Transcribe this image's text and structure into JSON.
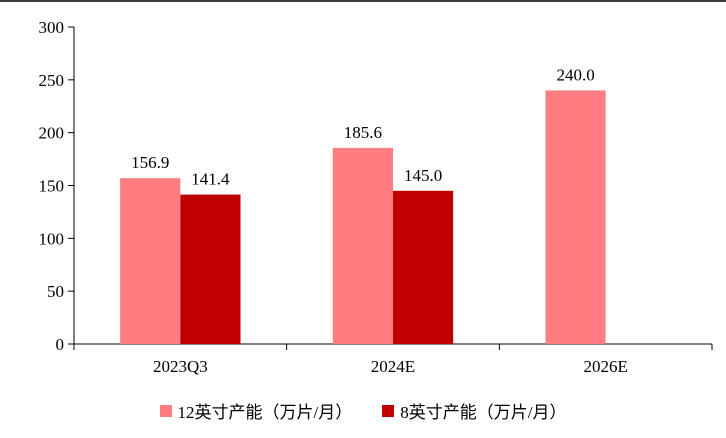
{
  "chart_data": {
    "type": "bar",
    "categories": [
      "2023Q3",
      "2024E",
      "2026E"
    ],
    "series": [
      {
        "name": "12英寸产能（万片/月）",
        "values": [
          156.9,
          185.6,
          240.0
        ],
        "labels": [
          "156.9",
          "185.6",
          "240.0"
        ],
        "color": "#ff7c80"
      },
      {
        "name": "8英寸产能（万片/月）",
        "values": [
          141.4,
          145.0,
          null
        ],
        "labels": [
          "141.4",
          "145.0",
          null
        ],
        "color": "#c00000"
      }
    ],
    "ylim": [
      0,
      300
    ],
    "yticks": [
      0,
      50,
      100,
      150,
      200,
      250,
      300
    ],
    "ytick_labels": [
      "0",
      "50",
      "100",
      "150",
      "200",
      "250",
      "300"
    ],
    "title": "",
    "xlabel": "",
    "ylabel": "",
    "legend_position": "bottom"
  }
}
